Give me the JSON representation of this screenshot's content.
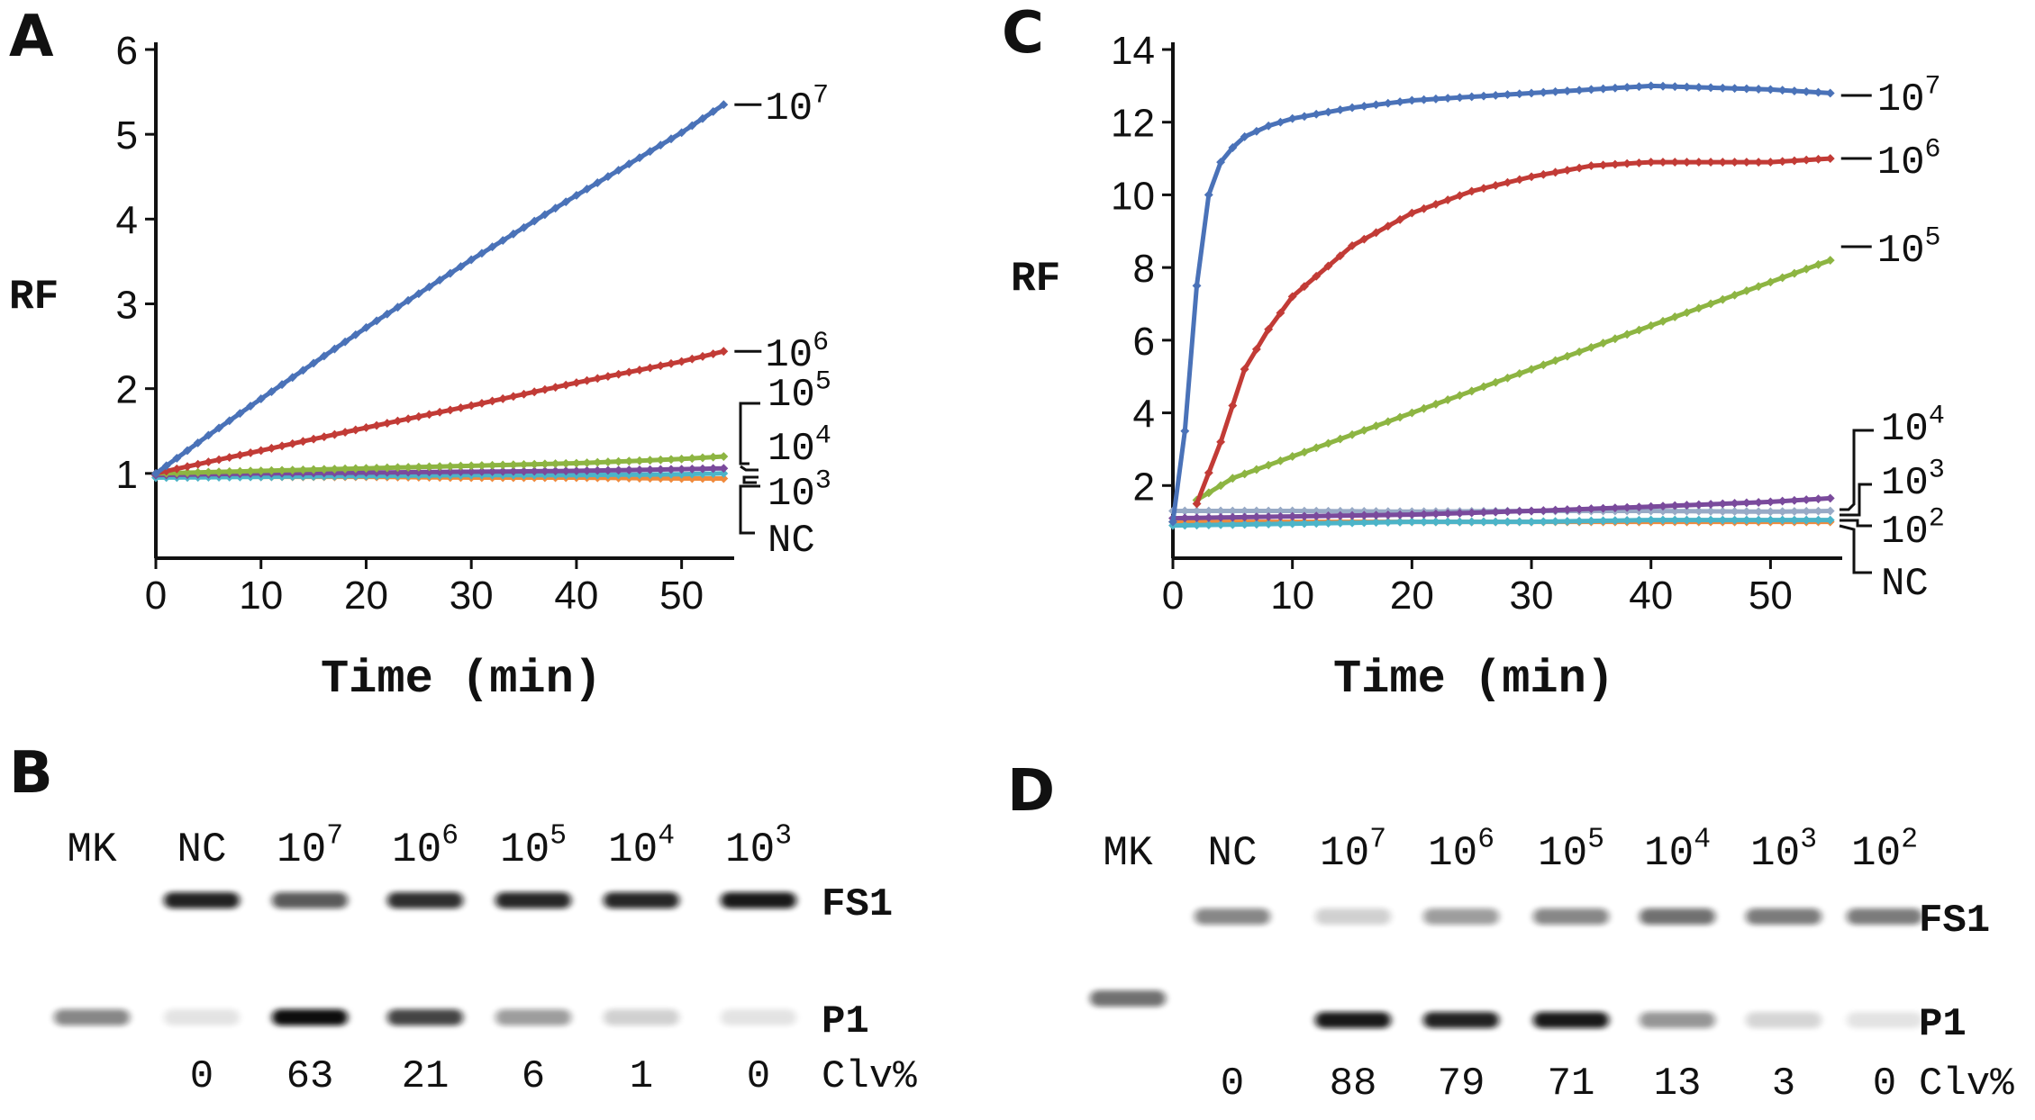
{
  "panels": {
    "a": "A",
    "b": "B",
    "c": "C",
    "d": "D"
  },
  "colors": {
    "blue": "#4a72b8",
    "red": "#c23b36",
    "green": "#8db542",
    "purple": "#7a4a9c",
    "cyan": "#4cb4c8",
    "orange": "#f08a3c",
    "gray": "#98aac6"
  },
  "chart_data": [
    {
      "type": "line",
      "panel": "A",
      "xlabel": "Time (min)",
      "ylabel": "RF",
      "xlim": [
        0,
        55
      ],
      "ylim": [
        0,
        6
      ],
      "xticks": [
        0,
        10,
        20,
        30,
        40,
        50
      ],
      "yticks": [
        1,
        2,
        3,
        4,
        5,
        6
      ],
      "series": [
        {
          "name": "10^7",
          "base": "10",
          "exp": "7",
          "color": "#4a72b8",
          "x": [
            0,
            5,
            10,
            15,
            20,
            25,
            30,
            35,
            40,
            45,
            50,
            54
          ],
          "y": [
            1.0,
            1.45,
            1.88,
            2.3,
            2.72,
            3.12,
            3.52,
            3.9,
            4.28,
            4.65,
            5.02,
            5.35
          ]
        },
        {
          "name": "10^6",
          "base": "10",
          "exp": "6",
          "color": "#c23b36",
          "x": [
            0,
            10,
            20,
            30,
            40,
            50,
            54
          ],
          "y": [
            1.0,
            1.27,
            1.54,
            1.8,
            2.07,
            2.32,
            2.44
          ]
        },
        {
          "name": "10^5",
          "base": "10",
          "exp": "5",
          "color": "#8db542",
          "x": [
            0,
            10,
            20,
            30,
            40,
            50,
            54
          ],
          "y": [
            1.0,
            1.03,
            1.06,
            1.09,
            1.12,
            1.17,
            1.2
          ]
        },
        {
          "name": "10^4",
          "base": "10",
          "exp": "4",
          "color": "#7a4a9c",
          "x": [
            0,
            10,
            20,
            30,
            40,
            50,
            54
          ],
          "y": [
            0.98,
            1.0,
            1.01,
            1.02,
            1.03,
            1.05,
            1.06
          ]
        },
        {
          "name": "10^3",
          "base": "10",
          "exp": "3",
          "color": "#4cb4c8",
          "x": [
            0,
            10,
            20,
            30,
            40,
            50,
            54
          ],
          "y": [
            0.95,
            0.96,
            0.97,
            0.98,
            0.98,
            0.99,
            1.0
          ]
        },
        {
          "name": "NC",
          "color": "#f08a3c",
          "x": [
            0,
            10,
            20,
            30,
            40,
            50,
            54
          ],
          "y": [
            0.97,
            0.96,
            0.96,
            0.95,
            0.95,
            0.94,
            0.94
          ]
        }
      ]
    },
    {
      "type": "line",
      "panel": "C",
      "xlabel": "Time (min)",
      "ylabel": "RF",
      "xlim": [
        0,
        56
      ],
      "ylim": [
        0,
        14
      ],
      "xticks": [
        0,
        10,
        20,
        30,
        40,
        50
      ],
      "yticks": [
        2,
        4,
        6,
        8,
        10,
        12,
        14
      ],
      "series": [
        {
          "name": "10^7",
          "base": "10",
          "exp": "7",
          "color": "#4a72b8",
          "x": [
            0,
            1,
            2,
            3,
            4,
            5,
            6,
            8,
            10,
            15,
            20,
            30,
            40,
            50,
            55
          ],
          "y": [
            1.0,
            3.5,
            7.5,
            10.0,
            10.9,
            11.3,
            11.6,
            11.9,
            12.1,
            12.4,
            12.6,
            12.8,
            13.0,
            12.9,
            12.8
          ]
        },
        {
          "name": "10^6",
          "base": "10",
          "exp": "6",
          "color": "#c23b36",
          "x": [
            2,
            4,
            6,
            8,
            10,
            15,
            20,
            25,
            30,
            35,
            40,
            45,
            50,
            55
          ],
          "y": [
            1.5,
            3.2,
            5.2,
            6.3,
            7.2,
            8.6,
            9.5,
            10.1,
            10.5,
            10.8,
            10.9,
            10.9,
            10.9,
            11.0
          ]
        },
        {
          "name": "10^5",
          "base": "10",
          "exp": "5",
          "color": "#8db542",
          "x": [
            2,
            5,
            10,
            20,
            30,
            40,
            50,
            55
          ],
          "y": [
            1.6,
            2.2,
            2.8,
            4.0,
            5.2,
            6.4,
            7.6,
            8.2
          ]
        },
        {
          "name": "10^4",
          "base": "10",
          "exp": "4",
          "color": "#7a4a9c",
          "x": [
            0,
            10,
            20,
            30,
            40,
            50,
            55
          ],
          "y": [
            1.1,
            1.15,
            1.2,
            1.3,
            1.42,
            1.55,
            1.65
          ]
        },
        {
          "name": "10^3",
          "base": "10",
          "exp": "3",
          "color": "#98aac6",
          "x": [
            0,
            10,
            20,
            30,
            40,
            50,
            55
          ],
          "y": [
            1.3,
            1.3,
            1.28,
            1.3,
            1.3,
            1.28,
            1.3
          ]
        },
        {
          "name": "10^2",
          "base": "10",
          "exp": "2",
          "color": "#4cb4c8",
          "x": [
            0,
            10,
            20,
            30,
            40,
            50,
            55
          ],
          "y": [
            0.9,
            0.95,
            1.0,
            1.0,
            1.05,
            1.05,
            1.05
          ]
        },
        {
          "name": "NC",
          "color": "#f08a3c",
          "x": [
            0,
            10,
            20,
            30,
            40,
            50,
            55
          ],
          "y": [
            1.0,
            1.0,
            1.0,
            1.0,
            1.0,
            1.0,
            1.0
          ]
        }
      ]
    }
  ],
  "gels": {
    "b": {
      "lanes": [
        {
          "label": "MK",
          "clv": "",
          "fs1": 0.0,
          "p1": 0.45
        },
        {
          "label": "NC",
          "clv": "0",
          "fs1": 0.9,
          "p1": 0.03
        },
        {
          "label": "10",
          "exp": "7",
          "clv": "63",
          "fs1": 0.65,
          "p1": 1.0
        },
        {
          "label": "10",
          "exp": "6",
          "clv": "21",
          "fs1": 0.85,
          "p1": 0.75
        },
        {
          "label": "10",
          "exp": "5",
          "clv": "6",
          "fs1": 0.88,
          "p1": 0.35
        },
        {
          "label": "10",
          "exp": "4",
          "clv": "1",
          "fs1": 0.88,
          "p1": 0.12
        },
        {
          "label": "10",
          "exp": "3",
          "clv": "0",
          "fs1": 0.95,
          "p1": 0.03
        }
      ],
      "band_labels": {
        "fs1": "FS1",
        "p1": "P1"
      },
      "clv_label": "Clv%"
    },
    "d": {
      "lanes": [
        {
          "label": "MK",
          "clv": "",
          "fs1": 0.0,
          "p1": 0.55
        },
        {
          "label": "NC",
          "clv": "0",
          "fs1": 0.45,
          "p1": 0.0
        },
        {
          "label": "10",
          "exp": "7",
          "clv": "88",
          "fs1": 0.12,
          "p1": 0.95
        },
        {
          "label": "10",
          "exp": "6",
          "clv": "79",
          "fs1": 0.35,
          "p1": 0.9
        },
        {
          "label": "10",
          "exp": "5",
          "clv": "71",
          "fs1": 0.45,
          "p1": 0.95
        },
        {
          "label": "10",
          "exp": "4",
          "clv": "13",
          "fs1": 0.55,
          "p1": 0.38
        },
        {
          "label": "10",
          "exp": "3",
          "clv": "3",
          "fs1": 0.5,
          "p1": 0.1
        },
        {
          "label": "10",
          "exp": "2",
          "clv": "0",
          "fs1": 0.5,
          "p1": 0.03
        }
      ],
      "band_labels": {
        "fs1": "FS1",
        "p1": "P1"
      },
      "clv_label": "Clv%"
    }
  }
}
